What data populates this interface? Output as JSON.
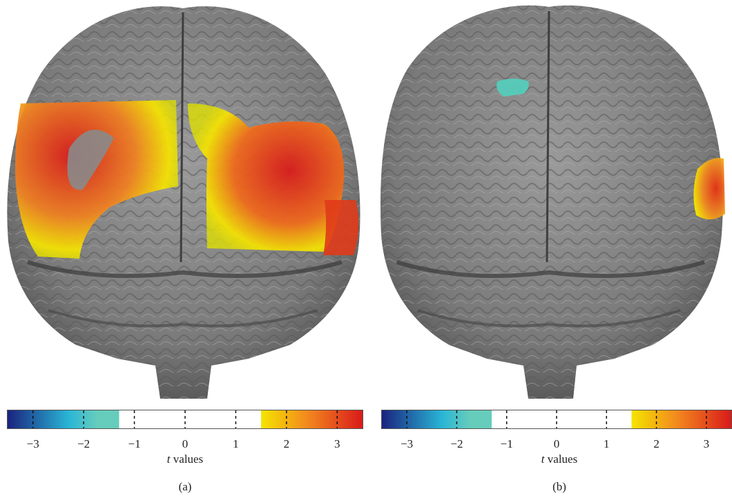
{
  "figure": {
    "panels": [
      {
        "id": "a",
        "label": "(a)",
        "colorbar": {
          "ticks": [
            "−3",
            "−2",
            "−1",
            "0",
            "1",
            "2",
            "3"
          ],
          "axis_label_italic": "t",
          "axis_label_rest": " values",
          "range": [
            -3.5,
            3.5
          ],
          "threshold_neg": -1.3,
          "threshold_pos": 1.5
        },
        "activations": [
          {
            "region": "left frontal-parietal",
            "sign": "positive",
            "peak_t": 3.4
          },
          {
            "region": "right frontal-parietal",
            "sign": "positive",
            "peak_t": 3.4
          },
          {
            "region": "right temporal",
            "sign": "positive",
            "peak_t": 3.0
          }
        ]
      },
      {
        "id": "b",
        "label": "(b)",
        "colorbar": {
          "ticks": [
            "−3",
            "−2",
            "−1",
            "0",
            "1",
            "2",
            "3"
          ],
          "axis_label_italic": "t",
          "axis_label_rest": " values",
          "range": [
            -3.5,
            3.5
          ],
          "threshold_neg": -1.3,
          "threshold_pos": 1.5
        },
        "activations": [
          {
            "region": "left frontal",
            "sign": "negative",
            "peak_t": -1.6
          },
          {
            "region": "right temporal",
            "sign": "positive",
            "peak_t": 2.6
          }
        ]
      }
    ],
    "colors": {
      "brain": "#7d7d7d",
      "brain_shadow": "#4a4a4a",
      "cb_dark_blue": "#1a237e",
      "cb_cyan": "#29b6d6",
      "cb_teal": "#66ccbb",
      "cb_yellow": "#f5e400",
      "cb_orange": "#f38a1e",
      "cb_red": "#d91a1a"
    }
  }
}
